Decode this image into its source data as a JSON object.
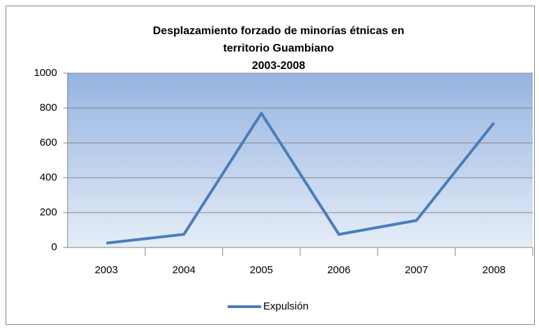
{
  "chart_data": {
    "type": "line",
    "title": [
      "Desplazamiento forzado de minorías étnicas en",
      "territorio Guambiano",
      "2003-2008"
    ],
    "categories": [
      "2003",
      "2004",
      "2005",
      "2006",
      "2007",
      "2008"
    ],
    "series": [
      {
        "name": "Expulsión",
        "color": "#4a7ebb",
        "values": [
          25,
          75,
          770,
          75,
          155,
          715
        ]
      }
    ],
    "ylim": [
      0,
      1000
    ],
    "yticks": [
      0,
      200,
      400,
      600,
      800,
      1000
    ],
    "grid": true,
    "legend": "bottom"
  }
}
